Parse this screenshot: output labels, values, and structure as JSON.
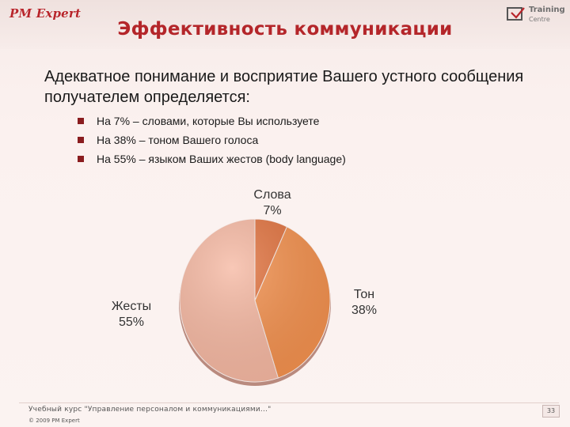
{
  "header": {
    "logo_left": "PM Expert",
    "logo_right_line1": "Training",
    "logo_right_line2": "Centre",
    "title": "Эффективность коммуникации"
  },
  "body": {
    "intro": "Адекватное понимание и восприятие Вашего устного сообщения получателем определяется:",
    "bullets": [
      "На 7% – словами, которые Вы используете",
      "На 38% – тоном Вашего голоса",
      "На 55% – языком Ваших жестов (body language)"
    ]
  },
  "chart_data": {
    "type": "pie",
    "title": "",
    "slices": [
      {
        "label": "Слова",
        "value": 7,
        "value_label": "7%",
        "color": "#e2733f"
      },
      {
        "label": "Тон",
        "value": 38,
        "value_label": "38%",
        "color": "#f4914e"
      },
      {
        "label": "Жесты",
        "value": 55,
        "value_label": "55%",
        "color": "#f6b8a2"
      }
    ]
  },
  "footer": {
    "course": "Учебный курс \"Управление персоналом и коммуникациями...\"",
    "copyright": "© 2009 PM Expert",
    "page_number": "33"
  },
  "colors": {
    "title": "#b4262a",
    "bullet": "#8a1d1f",
    "logo": "#b8252b"
  }
}
